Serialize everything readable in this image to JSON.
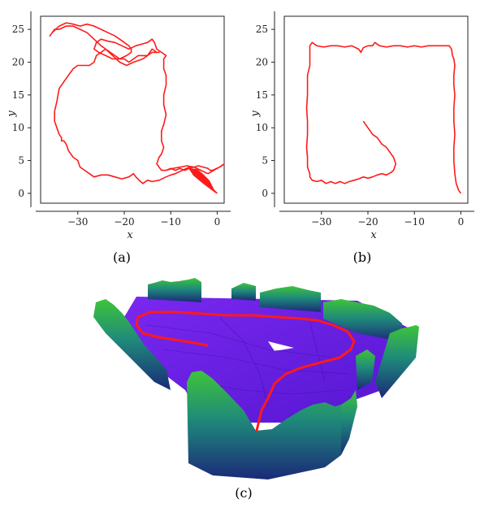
{
  "colors": {
    "trajectory": "#ff1a1a",
    "frame": "#222222"
  },
  "captions": {
    "a": "(a)",
    "b": "(b)",
    "c": "(c)"
  },
  "chart_data": [
    {
      "type": "line",
      "id": "a",
      "xlabel": "x",
      "ylabel": "y",
      "xlim": [
        -38,
        1.5
      ],
      "ylim": [
        -1.5,
        27
      ],
      "xticks": [
        -30,
        -20,
        -10,
        0
      ],
      "yticks": [
        0,
        5,
        10,
        15,
        20,
        25
      ],
      "grid": false,
      "series": [
        {
          "x": [
            0,
            -1.5,
            -3,
            -4.5,
            -6,
            -7.5,
            -9,
            -10,
            -11,
            -12.5,
            -14,
            -15,
            -16,
            -16.5,
            -17.5,
            -18,
            -19,
            -20.5,
            -22,
            -23.5,
            -25,
            -26.5,
            -27.5,
            -28.5,
            -29.5,
            -30,
            -31,
            -32,
            -32.5,
            -33,
            -33.5,
            -33.5,
            -34,
            -34.5,
            -35,
            -35,
            -34.5,
            -34,
            -33,
            -32,
            -31,
            -30,
            -28.5,
            -27.5,
            -26.5,
            -26,
            -25,
            -24,
            -23,
            -22,
            -21,
            -20,
            -19,
            -18,
            -17,
            -16,
            -15,
            -14,
            -13,
            -12.5,
            -14,
            -16,
            -18,
            -19.5,
            -21,
            -22.5,
            -24,
            -25,
            -26.5,
            -28,
            -29.5,
            -31,
            -32.5,
            -34,
            -35,
            -36,
            -35.5,
            -34,
            -32.5,
            -31,
            -29.5,
            -28,
            -26.5,
            -25,
            -23.5,
            -22,
            -21,
            -20,
            -19,
            -18.5,
            -18.5,
            -19.5,
            -21,
            -22.5,
            -24,
            -25.5,
            -26.5,
            -26,
            -25,
            -23.5,
            -22,
            -20.5,
            -19,
            -17.5,
            -16,
            -15,
            -14,
            -13.5,
            -13,
            -12,
            -11,
            -11.5,
            -11.5,
            -11,
            -11,
            -11.5,
            -11.5,
            -11,
            -11.5,
            -12,
            -12,
            -11.5,
            -12,
            -12.5,
            -13,
            -12.5,
            -12,
            -11,
            -10,
            -9,
            -8,
            -7,
            -6,
            -5,
            -4,
            -3,
            -2,
            -1.5,
            -1,
            0.5,
            1.5,
            1,
            -0.5,
            -2,
            -3.5,
            -5,
            -6.5,
            -8,
            -9.5,
            -11
          ],
          "y": [
            0,
            1,
            2,
            3,
            4,
            3.5,
            3,
            2.8,
            2.5,
            2,
            1.8,
            2,
            1.5,
            1.8,
            2.5,
            3,
            2.5,
            2.2,
            2.5,
            2.8,
            2.8,
            2.5,
            3,
            3.5,
            4,
            5,
            5.5,
            6.5,
            7.5,
            8,
            8,
            8.5,
            9,
            10,
            11,
            12.5,
            14,
            16,
            17,
            18,
            19,
            19.5,
            19.5,
            19.5,
            20,
            21,
            21.5,
            22,
            21.5,
            21,
            20.5,
            20.5,
            20,
            20.5,
            21,
            21,
            21,
            22,
            21.5,
            21.5,
            21.5,
            20.5,
            20,
            19.5,
            20,
            21,
            22,
            22.5,
            23.5,
            24.5,
            25,
            25.5,
            25.5,
            25,
            25,
            24,
            24.5,
            25.5,
            26,
            25.8,
            25.5,
            25.8,
            25.5,
            25,
            24.5,
            24,
            23.5,
            23,
            22.5,
            22,
            21.5,
            21,
            20.5,
            20.5,
            21,
            21.5,
            22,
            23,
            23.5,
            23.2,
            23,
            22.5,
            22,
            22.5,
            22.8,
            23,
            23.5,
            23,
            22,
            21.5,
            21,
            20.5,
            19,
            18,
            16.5,
            15,
            13.5,
            12,
            10.5,
            9.5,
            8,
            7,
            6,
            5.5,
            4.5,
            4,
            3.5,
            3.5,
            3.8,
            3.5,
            3.8,
            3.5,
            3.8,
            4,
            4.2,
            4,
            3.8,
            3.5,
            3.5,
            4,
            4.5,
            4.2,
            3.6,
            3,
            3.5,
            4,
            4.2,
            4,
            3.8,
            3.5
          ]
        }
      ]
    },
    {
      "type": "line",
      "id": "b",
      "xlabel": "x",
      "ylabel": "y",
      "xlim": [
        -38,
        1.5
      ],
      "ylim": [
        -1.5,
        27
      ],
      "xticks": [
        -30,
        -20,
        -10,
        0
      ],
      "yticks": [
        0,
        5,
        10,
        15,
        20,
        25
      ],
      "grid": false,
      "series": [
        {
          "x": [
            0,
            -0.5,
            -1,
            -1.3,
            -1.5,
            -1.5,
            -1.3,
            -1.5,
            -1.5,
            -1.3,
            -1.5,
            -1.5,
            -1.3,
            -1.5,
            -1.8,
            -2,
            -2.5,
            -4,
            -5.5,
            -7,
            -8.5,
            -10,
            -11.5,
            -13,
            -14.5,
            -16,
            -17.5,
            -18.5,
            -19,
            -20,
            -21,
            -21.5,
            -22,
            -23.5,
            -25,
            -26.5,
            -28,
            -29.5,
            -31,
            -32,
            -32.5,
            -32.5,
            -32.5,
            -33,
            -33,
            -33,
            -33.2,
            -33,
            -33,
            -33.2,
            -33,
            -33,
            -32.5,
            -32.5,
            -32,
            -31,
            -30,
            -29,
            -28,
            -27,
            -26,
            -25,
            -24,
            -23,
            -22,
            -21,
            -20,
            -19,
            -18,
            -17,
            -16,
            -15,
            -14.5,
            -14,
            -14.5,
            -15,
            -15.5,
            -16,
            -17,
            -17.5,
            -18,
            -19,
            -19.5,
            -20,
            -20.5,
            -21
          ],
          "y": [
            0,
            0.5,
            1.5,
            3,
            5,
            7,
            9,
            11,
            13,
            15,
            16.5,
            18,
            19.5,
            20.5,
            21,
            22,
            22.5,
            22.5,
            22.5,
            22.5,
            22.3,
            22.5,
            22.3,
            22.5,
            22.5,
            22.3,
            22.5,
            23,
            22.5,
            22.5,
            22.2,
            21.5,
            22,
            22.5,
            22.3,
            22.5,
            22.5,
            22.3,
            22.5,
            23,
            22.5,
            21,
            19.5,
            18,
            16.5,
            15,
            13,
            11,
            9,
            7,
            5.5,
            4,
            3,
            2.5,
            2,
            1.8,
            2,
            1.5,
            1.8,
            1.5,
            1.8,
            1.5,
            1.8,
            2,
            2.2,
            2.5,
            2.3,
            2.5,
            2.8,
            3,
            2.8,
            3.2,
            3.5,
            4.5,
            5.5,
            6,
            6.5,
            7,
            7.5,
            8,
            8.5,
            9,
            9.5,
            10,
            10.5,
            11
          ]
        }
      ]
    }
  ]
}
